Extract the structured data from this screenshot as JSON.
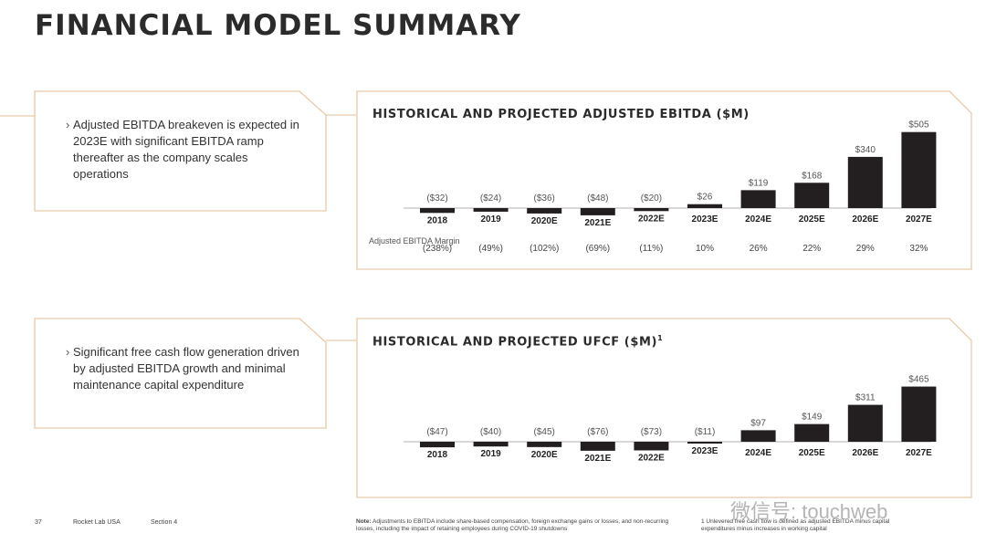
{
  "page": {
    "title": "FINANCIAL MODEL SUMMARY",
    "page_number": "37",
    "company": "Rocket Lab USA",
    "section": "Section 4",
    "note_label": "Note:",
    "note_text": " Adjustments to EBITDA include share-based compensation, foreign exchange gains or losses, and non-recurring losses, including the impact of retaining employees during COVID-19 shutdowns",
    "footnote": "1 Unlevered free cash flow is defined as adjusted EBITDA minus capital expenditures minus increases in working capital",
    "watermark": "微信号: touchweb",
    "accent_color": "#e8c9a8"
  },
  "callouts": [
    {
      "text": "Adjusted EBITDA breakeven is expected in 2023E with significant EBITDA ramp thereafter as the company scales operations"
    },
    {
      "text": "Significant free cash flow generation driven by adjusted EBITDA growth and minimal maintenance capital expenditure"
    }
  ],
  "margin_row_label": "Adjusted EBITDA Margin",
  "chart_data": [
    {
      "type": "bar",
      "title": "HISTORICAL AND PROJECTED ADJUSTED EBITDA ($M)",
      "categories": [
        "2018",
        "2019",
        "2020E",
        "2021E",
        "2022E",
        "2023E",
        "2024E",
        "2025E",
        "2026E",
        "2027E"
      ],
      "values": [
        -32,
        -24,
        -36,
        -48,
        -20,
        26,
        119,
        168,
        340,
        505
      ],
      "data_labels": [
        "($32)",
        "($24)",
        "($36)",
        "($48)",
        "($20)",
        "$26",
        "$119",
        "$168",
        "$340",
        "$505"
      ],
      "margins": [
        "(238%)",
        "(49%)",
        "(102%)",
        "(69%)",
        "(11%)",
        "10%",
        "26%",
        "22%",
        "29%",
        "32%"
      ],
      "bar_color": "#231f20"
    },
    {
      "type": "bar",
      "title": "HISTORICAL AND PROJECTED UFCF ($M)",
      "title_sup": "1",
      "categories": [
        "2018",
        "2019",
        "2020E",
        "2021E",
        "2022E",
        "2023E",
        "2024E",
        "2025E",
        "2026E",
        "2027E"
      ],
      "values": [
        -47,
        -40,
        -45,
        -76,
        -73,
        -11,
        97,
        149,
        311,
        465
      ],
      "data_labels": [
        "($47)",
        "($40)",
        "($45)",
        "($76)",
        "($73)",
        "($11)",
        "$97",
        "$149",
        "$311",
        "$465"
      ],
      "bar_color": "#231f20"
    }
  ]
}
